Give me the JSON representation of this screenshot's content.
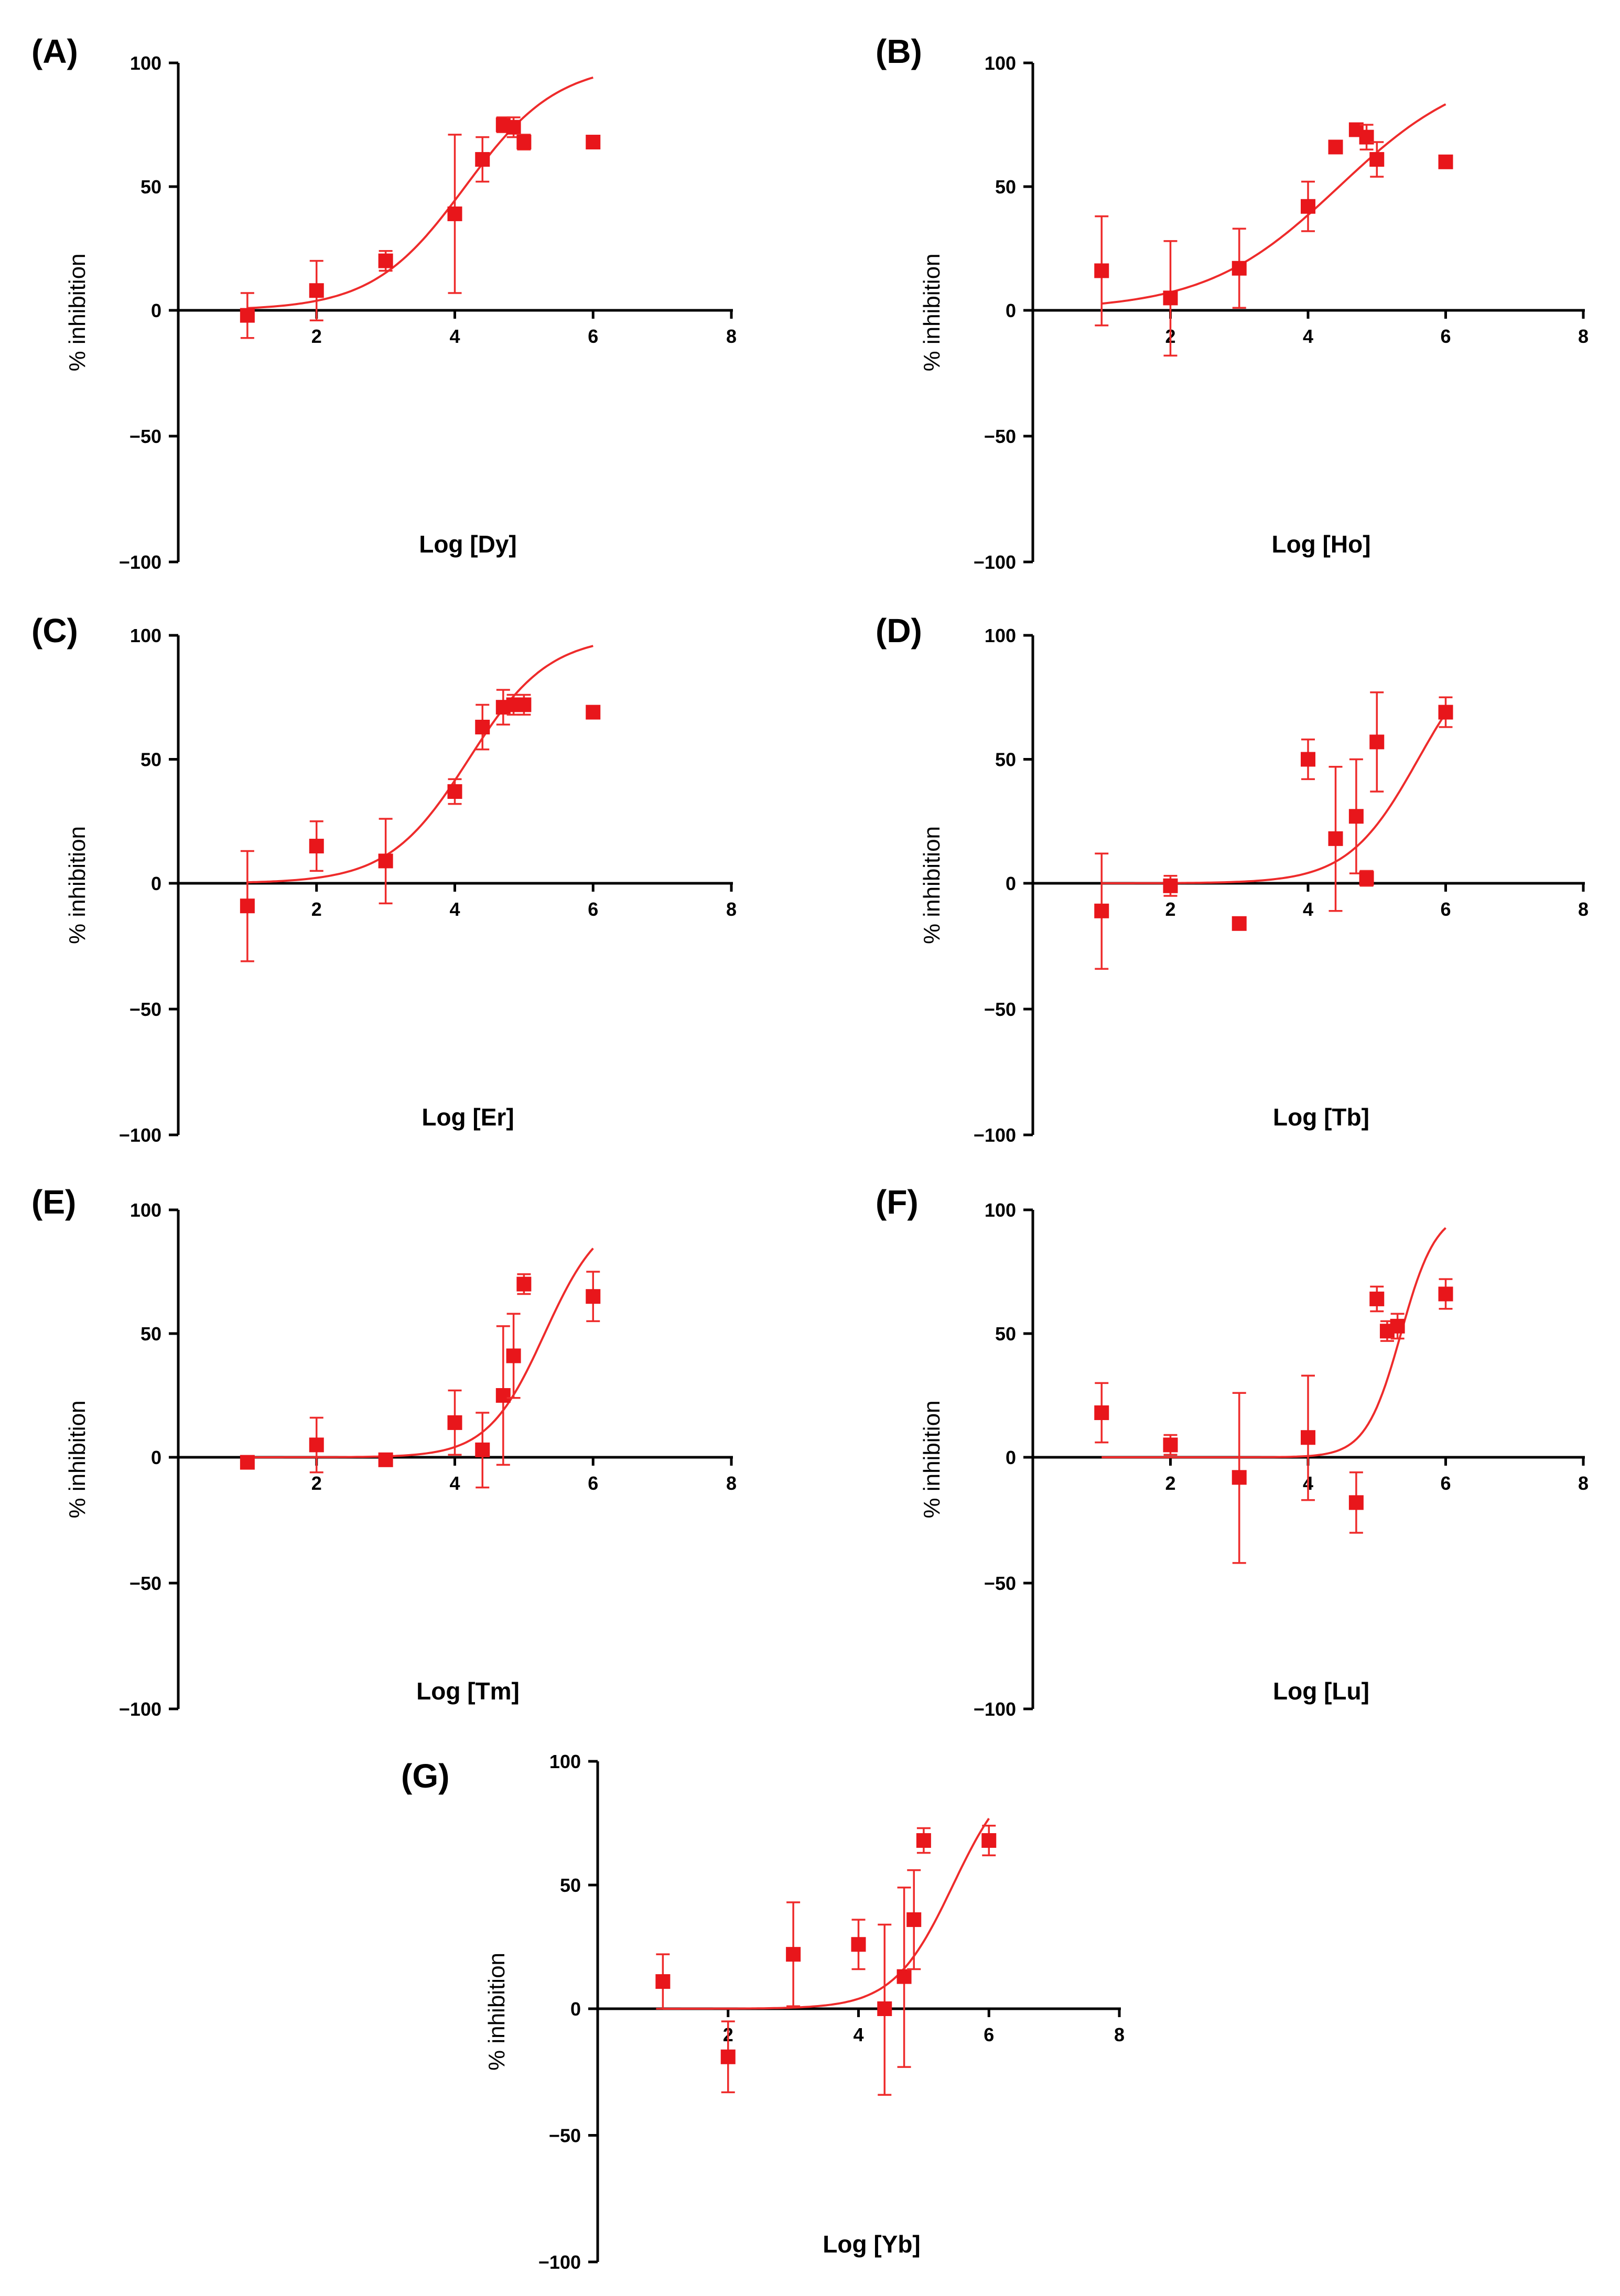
{
  "figure": {
    "point_color": "#e8161b",
    "curve_color": "#ee2b2b",
    "axis_color": "#000000"
  },
  "chart_data": [
    {
      "id": "A",
      "type": "scatter",
      "panel_label": "(A)",
      "xlabel": "Log [Dy]",
      "ylabel": "% inhibition",
      "xlim": [
        0,
        8
      ],
      "ylim": [
        -100,
        100
      ],
      "x_ticks": [
        2,
        4,
        6,
        8
      ],
      "y_ticks": [
        -100,
        -50,
        0,
        50,
        100
      ],
      "x_tick_labels": [
        "2",
        "4",
        "6",
        "8"
      ],
      "y_tick_labels": [
        "-100",
        "-50",
        "0",
        "50",
        "100"
      ],
      "points": [
        {
          "x": 1.0,
          "y": -2,
          "err": 9
        },
        {
          "x": 2.0,
          "y": 8,
          "err": 12
        },
        {
          "x": 3.0,
          "y": 20,
          "err": 4
        },
        {
          "x": 4.0,
          "y": 39,
          "err": 32
        },
        {
          "x": 4.4,
          "y": 61,
          "err": 9
        },
        {
          "x": 4.7,
          "y": 75,
          "err": 3
        },
        {
          "x": 4.85,
          "y": 74,
          "err": 4
        },
        {
          "x": 5.0,
          "y": 68,
          "err": 3
        },
        {
          "x": 6.0,
          "y": 68,
          "err": 2
        }
      ],
      "fit": {
        "bottom": 0,
        "top": 100,
        "logEC50": 4.15,
        "hill": 0.65,
        "x_range": [
          1.0,
          6.0
        ]
      }
    },
    {
      "id": "B",
      "type": "scatter",
      "panel_label": "(B)",
      "xlabel": "Log [Ho]",
      "ylabel": "% inhibition",
      "xlim": [
        0,
        8
      ],
      "ylim": [
        -100,
        100
      ],
      "x_ticks": [
        2,
        4,
        6,
        8
      ],
      "y_ticks": [
        -100,
        -50,
        0,
        50,
        100
      ],
      "x_tick_labels": [
        "2",
        "4",
        "6",
        "8"
      ],
      "y_tick_labels": [
        "-100",
        "-50",
        "0",
        "50",
        "100"
      ],
      "points": [
        {
          "x": 1.0,
          "y": 16,
          "err": 22
        },
        {
          "x": 2.0,
          "y": 5,
          "err": 23
        },
        {
          "x": 3.0,
          "y": 17,
          "err": 16
        },
        {
          "x": 4.0,
          "y": 42,
          "err": 10
        },
        {
          "x": 4.4,
          "y": 66,
          "err": 0
        },
        {
          "x": 4.7,
          "y": 73,
          "err": 2
        },
        {
          "x": 4.85,
          "y": 70,
          "err": 5
        },
        {
          "x": 5.0,
          "y": 61,
          "err": 7
        },
        {
          "x": 6.0,
          "y": 60,
          "err": 0
        }
      ],
      "fit": {
        "bottom": 0,
        "top": 100,
        "logEC50": 4.45,
        "hill": 0.45,
        "x_range": [
          1.0,
          6.0
        ]
      }
    },
    {
      "id": "C",
      "type": "scatter",
      "panel_label": "(C)",
      "xlabel": "Log [Er]",
      "ylabel": "% inhibition",
      "xlim": [
        0,
        8
      ],
      "ylim": [
        -100,
        100
      ],
      "x_ticks": [
        2,
        4,
        6,
        8
      ],
      "y_ticks": [
        -100,
        -50,
        0,
        50,
        100
      ],
      "x_tick_labels": [
        "2",
        "4",
        "6",
        "8"
      ],
      "y_tick_labels": [
        "-100",
        "-50",
        "0",
        "50",
        "100"
      ],
      "points": [
        {
          "x": 1.0,
          "y": -9,
          "err": 22
        },
        {
          "x": 2.0,
          "y": 15,
          "err": 10
        },
        {
          "x": 3.0,
          "y": 9,
          "err": 17
        },
        {
          "x": 4.0,
          "y": 37,
          "err": 5
        },
        {
          "x": 4.4,
          "y": 63,
          "err": 9
        },
        {
          "x": 4.7,
          "y": 71,
          "err": 7
        },
        {
          "x": 4.85,
          "y": 72,
          "err": 4
        },
        {
          "x": 5.0,
          "y": 72,
          "err": 4
        },
        {
          "x": 6.0,
          "y": 69,
          "err": 0
        }
      ],
      "fit": {
        "bottom": 0,
        "top": 100,
        "logEC50": 4.2,
        "hill": 0.75,
        "x_range": [
          1.0,
          6.0
        ]
      }
    },
    {
      "id": "D",
      "type": "scatter",
      "panel_label": "(D)",
      "xlabel": "Log [Tb]",
      "ylabel": "% inhibition",
      "xlim": [
        0,
        8
      ],
      "ylim": [
        -100,
        100
      ],
      "x_ticks": [
        2,
        4,
        6,
        8
      ],
      "y_ticks": [
        -100,
        -50,
        0,
        50,
        100
      ],
      "x_tick_labels": [
        "2",
        "4",
        "6",
        "8"
      ],
      "y_tick_labels": [
        "-100",
        "-50",
        "0",
        "50",
        "100"
      ],
      "points": [
        {
          "x": 1.0,
          "y": -11,
          "err": 23
        },
        {
          "x": 2.0,
          "y": -1,
          "err": 4
        },
        {
          "x": 3.0,
          "y": -16,
          "err": 2
        },
        {
          "x": 4.0,
          "y": 50,
          "err": 8
        },
        {
          "x": 4.4,
          "y": 18,
          "err": 29
        },
        {
          "x": 4.7,
          "y": 27,
          "err": 23
        },
        {
          "x": 4.85,
          "y": 2,
          "err": 3
        },
        {
          "x": 5.0,
          "y": 57,
          "err": 20
        },
        {
          "x": 6.0,
          "y": 69,
          "err": 6
        }
      ],
      "fit": {
        "bottom": 0,
        "top": 100,
        "logEC50": 5.6,
        "hill": 0.85,
        "x_range": [
          1.0,
          6.0
        ]
      }
    },
    {
      "id": "E",
      "type": "scatter",
      "panel_label": "(E)",
      "xlabel": "Log [Tm]",
      "ylabel": "% inhibition",
      "xlim": [
        0,
        8
      ],
      "ylim": [
        -100,
        100
      ],
      "x_ticks": [
        2,
        4,
        6,
        8
      ],
      "y_ticks": [
        -100,
        -50,
        0,
        50,
        100
      ],
      "x_tick_labels": [
        "2",
        "4",
        "6",
        "8"
      ],
      "y_tick_labels": [
        "-100",
        "-50",
        "0",
        "50",
        "100"
      ],
      "points": [
        {
          "x": 1.0,
          "y": -2,
          "err": 0
        },
        {
          "x": 2.0,
          "y": 5,
          "err": 11
        },
        {
          "x": 3.0,
          "y": -1,
          "err": 0
        },
        {
          "x": 4.0,
          "y": 14,
          "err": 13
        },
        {
          "x": 4.4,
          "y": 3,
          "err": 15
        },
        {
          "x": 4.7,
          "y": 25,
          "err": 28
        },
        {
          "x": 4.85,
          "y": 41,
          "err": 17
        },
        {
          "x": 5.0,
          "y": 70,
          "err": 4
        },
        {
          "x": 6.0,
          "y": 65,
          "err": 10
        }
      ],
      "fit": {
        "bottom": 0,
        "top": 100,
        "logEC50": 5.3,
        "hill": 1.05,
        "x_range": [
          1.0,
          6.0
        ]
      }
    },
    {
      "id": "F",
      "type": "scatter",
      "panel_label": "(F)",
      "xlabel": "Log [Lu]",
      "ylabel": "% inhibition",
      "xlim": [
        0,
        8
      ],
      "ylim": [
        -100,
        100
      ],
      "x_ticks": [
        2,
        4,
        6,
        8
      ],
      "y_ticks": [
        -100,
        -50,
        0,
        50,
        100
      ],
      "x_tick_labels": [
        "2",
        "4",
        "6",
        "8"
      ],
      "y_tick_labels": [
        "-100",
        "-50",
        "0",
        "50",
        "100"
      ],
      "points": [
        {
          "x": 1.0,
          "y": 18,
          "err": 12
        },
        {
          "x": 2.0,
          "y": 5,
          "err": 4
        },
        {
          "x": 3.0,
          "y": -8,
          "err": 34
        },
        {
          "x": 4.0,
          "y": 8,
          "err": 25
        },
        {
          "x": 4.7,
          "y": -18,
          "err": 12
        },
        {
          "x": 5.0,
          "y": 64,
          "err": 5
        },
        {
          "x": 5.15,
          "y": 51,
          "err": 4
        },
        {
          "x": 5.3,
          "y": 53,
          "err": 5
        },
        {
          "x": 6.0,
          "y": 66,
          "err": 6
        }
      ],
      "fit": {
        "bottom": 0,
        "top": 100,
        "logEC50": 5.35,
        "hill": 1.7,
        "x_range": [
          1.0,
          6.0
        ]
      }
    },
    {
      "id": "G",
      "type": "scatter",
      "panel_label": "(G)",
      "xlabel": "Log [Yb]",
      "ylabel": "% inhibition",
      "xlim": [
        0,
        8
      ],
      "ylim": [
        -100,
        100
      ],
      "x_ticks": [
        2,
        4,
        6,
        8
      ],
      "y_ticks": [
        -100,
        -50,
        0,
        50,
        100
      ],
      "x_tick_labels": [
        "2",
        "4",
        "6",
        "8"
      ],
      "y_tick_labels": [
        "-100",
        "-50",
        "0",
        "50",
        "100"
      ],
      "points": [
        {
          "x": 1.0,
          "y": 11,
          "err": 11
        },
        {
          "x": 2.0,
          "y": -19,
          "err": 14
        },
        {
          "x": 3.0,
          "y": 22,
          "err": 21
        },
        {
          "x": 4.0,
          "y": 26,
          "err": 10
        },
        {
          "x": 4.4,
          "y": 0,
          "err": 34
        },
        {
          "x": 4.7,
          "y": 13,
          "err": 36
        },
        {
          "x": 4.85,
          "y": 36,
          "err": 20
        },
        {
          "x": 5.0,
          "y": 68,
          "err": 5
        },
        {
          "x": 6.0,
          "y": 68,
          "err": 6
        }
      ],
      "fit": {
        "bottom": 0,
        "top": 100,
        "logEC50": 5.45,
        "hill": 0.95,
        "x_range": [
          1.0,
          6.0
        ]
      }
    }
  ]
}
